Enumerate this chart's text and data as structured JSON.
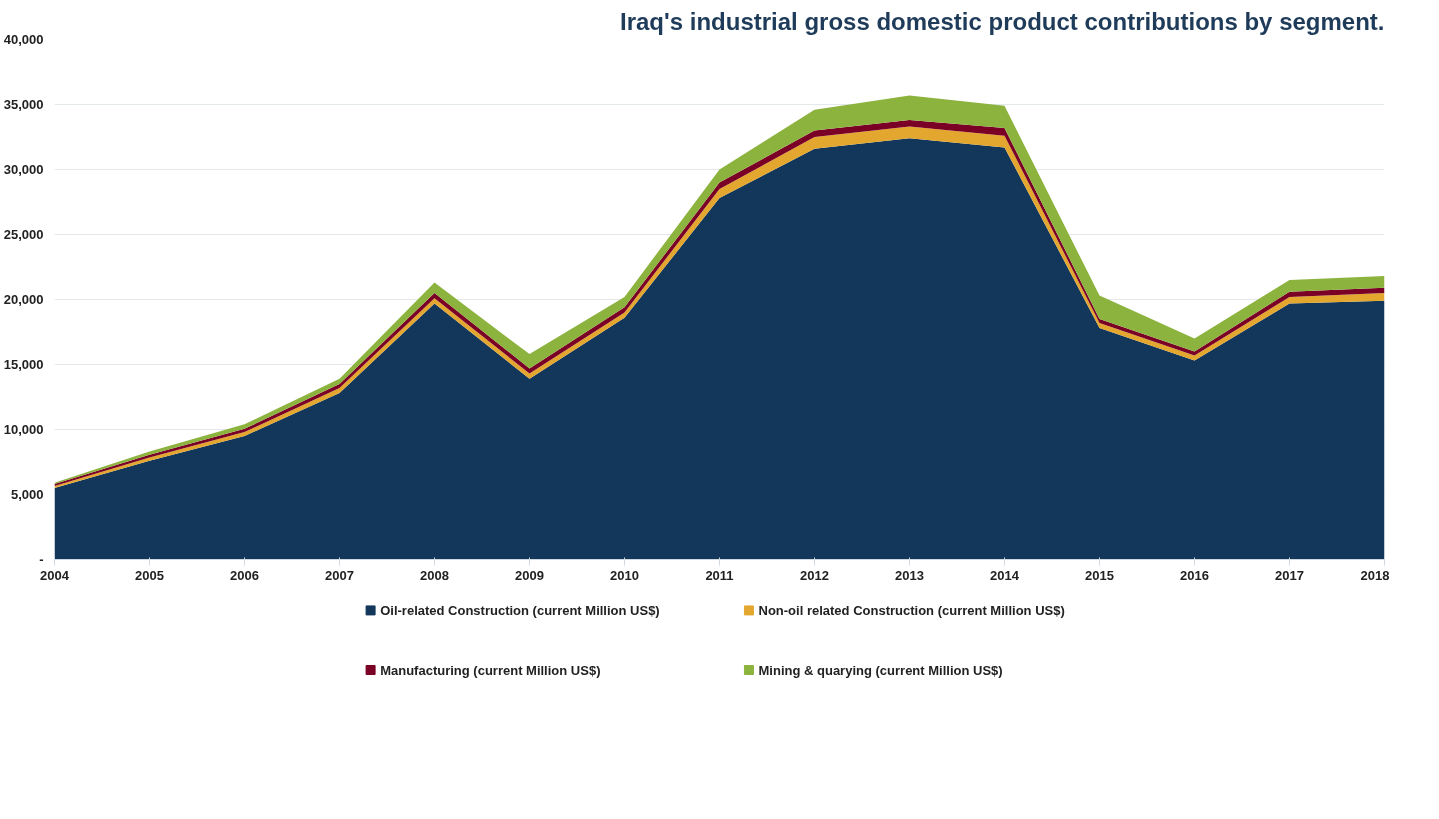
{
  "chart_data": {
    "type": "area",
    "stacked": true,
    "title": "Iraq's industrial gross domestic product contributions by segment.",
    "x": [
      2004,
      2005,
      2006,
      2007,
      2008,
      2009,
      2010,
      2011,
      2012,
      2013,
      2014,
      2015,
      2016,
      2017,
      2018
    ],
    "xlim": [
      2004,
      2018
    ],
    "xticks": [
      2004,
      2005,
      2006,
      2007,
      2008,
      2009,
      2010,
      2011,
      2012,
      2013,
      2014,
      2015,
      2016,
      2017,
      2018
    ],
    "ylim": [
      0,
      40000
    ],
    "yticks": [
      {
        "value": 0,
        "label": "-"
      },
      {
        "value": 5000,
        "label": "5,000"
      },
      {
        "value": 10000,
        "label": "10,000"
      },
      {
        "value": 15000,
        "label": "15,000"
      },
      {
        "value": 20000,
        "label": "20,000"
      },
      {
        "value": 25000,
        "label": "25,000"
      },
      {
        "value": 30000,
        "label": "30,000"
      },
      {
        "value": 35000,
        "label": "35,000"
      },
      {
        "value": 40000,
        "label": "40,000"
      }
    ],
    "grid": "y",
    "legend": "bottom",
    "series": [
      {
        "name": "Oil-related Construction (current Million US$)",
        "color": "#12375a",
        "values": [
          5500,
          7600,
          9500,
          12800,
          19700,
          13900,
          18600,
          27800,
          31600,
          32400,
          31700,
          17800,
          15300,
          19700,
          19900
        ]
      },
      {
        "name": "Non-oil related Construction (current Million US$)",
        "color": "#e3a72f",
        "values": [
          150,
          250,
          300,
          400,
          400,
          400,
          400,
          700,
          900,
          900,
          900,
          400,
          400,
          500,
          600
        ]
      },
      {
        "name": "Manufacturing (current Million US$)",
        "color": "#7b0025",
        "values": [
          150,
          200,
          250,
          300,
          400,
          400,
          400,
          500,
          500,
          500,
          600,
          300,
          300,
          400,
          400
        ]
      },
      {
        "name": "Mining & quarying (current Million US$)",
        "color": "#8db33f",
        "values": [
          100,
          250,
          350,
          400,
          800,
          1100,
          800,
          1000,
          1600,
          1900,
          1700,
          1800,
          1000,
          900,
          900
        ]
      }
    ]
  }
}
